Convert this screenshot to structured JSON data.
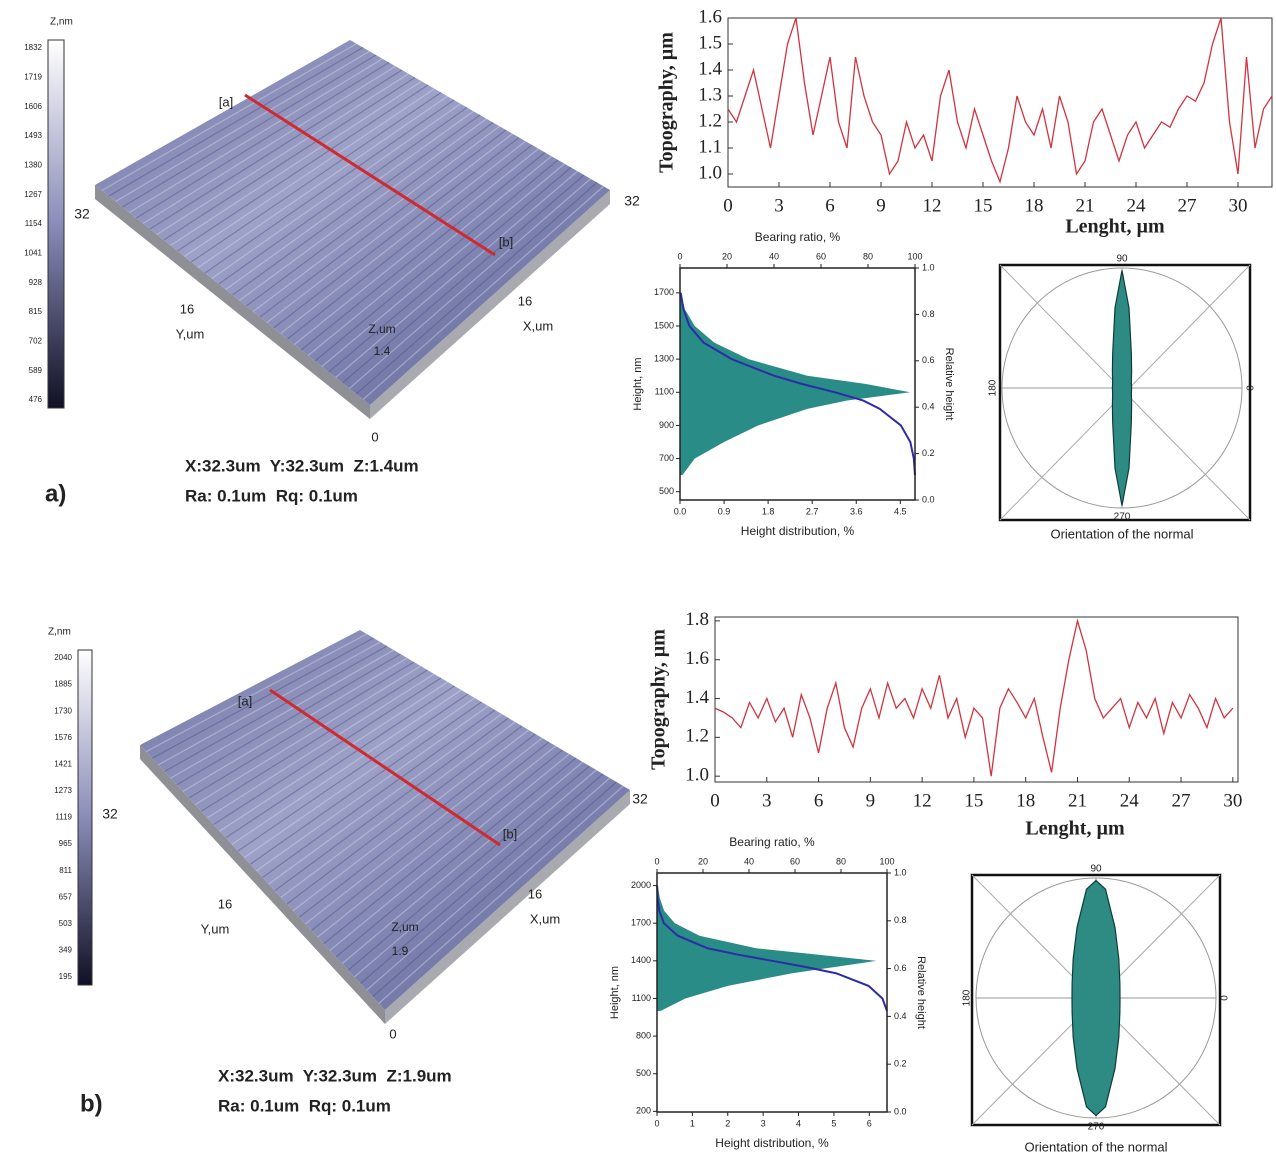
{
  "surfaces": [
    {
      "panel": "a)",
      "zlabel": "Z,nm",
      "colorbar": [
        "1832",
        "1719",
        "1606",
        "1493",
        "1380",
        "1267",
        "1154",
        "1041",
        "928",
        "815",
        "702",
        "589",
        "476"
      ],
      "ymax": "32",
      "xmax": "32",
      "ymid": "16",
      "ylabel": "Y,um",
      "xmid": "16",
      "xlabel": "X,um",
      "zlabel3d": "Z,um",
      "zval": "1.4",
      "origin": "0",
      "marker_start": "[a]",
      "marker_end": "[b]",
      "stats": [
        "X:32.3um  Y:32.3um  Z:1.4um",
        "Ra: 0.1um  Rq: 0.1um"
      ]
    },
    {
      "panel": "b)",
      "zlabel": "Z,nm",
      "colorbar": [
        "2040",
        "1885",
        "1730",
        "1576",
        "1421",
        "1273",
        "1119",
        "965",
        "811",
        "657",
        "503",
        "349",
        "195"
      ],
      "ymax": "32",
      "xmax": "32",
      "ymid": "16",
      "ylabel": "Y,um",
      "xmid": "16",
      "xlabel": "X,um",
      "zlabel3d": "Z,um",
      "zval": "1.9",
      "origin": "0",
      "marker_start": "[a]",
      "marker_end": "[b]",
      "stats": [
        "X:32.3um  Y:32.3um  Z:1.9um",
        "Ra: 0.1um  Rq: 0.1um"
      ]
    }
  ],
  "chart_data": [
    {
      "type": "line",
      "ylabel": "Topography, µm",
      "xlabel": "Lenght, µm",
      "color": "#d0343f",
      "xlim": [
        0,
        32
      ],
      "xticks": [
        0,
        3,
        6,
        9,
        12,
        15,
        18,
        21,
        24,
        27,
        30
      ],
      "ylim": [
        0.95,
        1.6
      ],
      "yticks": [
        {
          "value": 1,
          "label": "1.0"
        },
        1.1,
        1.2,
        1.3,
        1.4,
        1.5,
        1.6
      ],
      "x": [
        0,
        0.5,
        1,
        1.5,
        2,
        2.5,
        3,
        3.5,
        4,
        4.5,
        5,
        5.5,
        6,
        6.5,
        7,
        7.5,
        8,
        8.5,
        9,
        9.5,
        10,
        10.5,
        11,
        11.5,
        12,
        12.5,
        13,
        13.5,
        14,
        14.5,
        15,
        15.5,
        16,
        16.5,
        17,
        17.5,
        18,
        18.5,
        19,
        19.5,
        20,
        20.5,
        21,
        21.5,
        22,
        22.5,
        23,
        23.5,
        24,
        24.5,
        25,
        25.5,
        26,
        26.5,
        27,
        27.5,
        28,
        28.5,
        29,
        29.5,
        30,
        30.5,
        31,
        31.5,
        32
      ],
      "values": [
        1.25,
        1.2,
        1.3,
        1.4,
        1.25,
        1.1,
        1.3,
        1.5,
        1.6,
        1.35,
        1.15,
        1.3,
        1.45,
        1.2,
        1.1,
        1.45,
        1.3,
        1.2,
        1.15,
        1.0,
        1.05,
        1.2,
        1.1,
        1.15,
        1.05,
        1.3,
        1.4,
        1.2,
        1.1,
        1.25,
        1.15,
        1.05,
        0.97,
        1.1,
        1.3,
        1.2,
        1.15,
        1.25,
        1.1,
        1.3,
        1.2,
        1.0,
        1.05,
        1.2,
        1.25,
        1.15,
        1.05,
        1.15,
        1.2,
        1.1,
        1.15,
        1.2,
        1.18,
        1.25,
        1.3,
        1.28,
        1.35,
        1.5,
        1.6,
        1.2,
        1.0,
        1.45,
        1.1,
        1.25,
        1.3
      ]
    },
    {
      "type": "distribution",
      "xlabel": "Height distribution, %",
      "x2label": "Bearing ratio, %",
      "ylabel": "Height, nm",
      "y2label": "Relative height",
      "xlim": [
        0,
        4.8
      ],
      "xticks": [
        {
          "value": 0,
          "label": "0.0"
        },
        0.9,
        1.8,
        2.7,
        3.6,
        4.5
      ],
      "x2lim": [
        0,
        100
      ],
      "x2ticks": [
        0,
        20,
        40,
        60,
        80,
        100
      ],
      "ylim": [
        450,
        1850
      ],
      "yticks": [
        500,
        700,
        900,
        1100,
        1300,
        1500,
        1700
      ],
      "y2lim": [
        0,
        1
      ],
      "y2ticks": [
        {
          "value": 0,
          "label": "0.0"
        },
        0.2,
        0.4,
        0.6,
        0.8,
        {
          "value": 1,
          "label": "1.0"
        }
      ],
      "heights": [
        600,
        700,
        800,
        900,
        1000,
        1050,
        1100,
        1150,
        1200,
        1300,
        1400,
        1500,
        1600,
        1700
      ],
      "distribution": [
        0.05,
        0.3,
        0.9,
        1.6,
        2.6,
        3.4,
        4.7,
        3.8,
        2.6,
        1.4,
        0.7,
        0.3,
        0.1,
        0.02
      ],
      "bearing": [
        100,
        99.5,
        98,
        94,
        85,
        78,
        66,
        52,
        40,
        22,
        10,
        4,
        1.5,
        0.3
      ],
      "distribution_color": "#2a8c86",
      "bearing_color": "#2c2ca8"
    },
    {
      "type": "polar",
      "xlabel": "Orientation of the normal",
      "thetaticks": [
        0,
        90,
        180,
        270
      ],
      "rlim": [
        0,
        1
      ],
      "color": "#2e8b84",
      "angles": [
        0,
        30,
        60,
        75,
        85,
        90,
        95,
        105,
        120,
        150,
        180,
        210,
        240,
        255,
        265,
        270,
        275,
        285,
        300,
        330
      ],
      "radii": [
        0.08,
        0.09,
        0.16,
        0.3,
        0.67,
        0.98,
        0.67,
        0.3,
        0.16,
        0.09,
        0.08,
        0.09,
        0.16,
        0.3,
        0.67,
        0.98,
        0.67,
        0.3,
        0.16,
        0.09
      ]
    },
    {
      "type": "line",
      "ylabel": "Topography, µm",
      "xlabel": "Lenght, µm",
      "color": "#d0343f",
      "xlim": [
        0,
        30.3
      ],
      "xticks": [
        0,
        3,
        6,
        9,
        12,
        15,
        18,
        21,
        24,
        27,
        30
      ],
      "ylim": [
        0.97,
        1.82
      ],
      "yticks": [
        {
          "value": 1,
          "label": "1.0"
        },
        1.2,
        1.4,
        1.6,
        1.8
      ],
      "x": [
        0,
        0.5,
        1,
        1.5,
        2,
        2.5,
        3,
        3.5,
        4,
        4.5,
        5,
        5.5,
        6,
        6.5,
        7,
        7.5,
        8,
        8.5,
        9,
        9.5,
        10,
        10.5,
        11,
        11.5,
        12,
        12.5,
        13,
        13.5,
        14,
        14.5,
        15,
        15.5,
        16,
        16.5,
        17,
        17.5,
        18,
        18.5,
        19,
        19.5,
        20,
        20.5,
        21,
        21.5,
        22,
        22.5,
        23,
        23.5,
        24,
        24.5,
        25,
        25.5,
        26,
        26.5,
        27,
        27.5,
        28,
        28.5,
        29,
        29.5,
        30
      ],
      "values": [
        1.35,
        1.33,
        1.3,
        1.25,
        1.38,
        1.3,
        1.4,
        1.28,
        1.35,
        1.2,
        1.42,
        1.3,
        1.12,
        1.35,
        1.48,
        1.25,
        1.15,
        1.35,
        1.45,
        1.3,
        1.48,
        1.35,
        1.4,
        1.3,
        1.45,
        1.35,
        1.52,
        1.3,
        1.4,
        1.2,
        1.35,
        1.3,
        1.0,
        1.35,
        1.45,
        1.38,
        1.3,
        1.4,
        1.2,
        1.02,
        1.35,
        1.6,
        1.8,
        1.65,
        1.4,
        1.3,
        1.35,
        1.4,
        1.25,
        1.38,
        1.3,
        1.4,
        1.22,
        1.38,
        1.3,
        1.42,
        1.35,
        1.25,
        1.4,
        1.3,
        1.35
      ]
    },
    {
      "type": "distribution",
      "xlabel": "Height distribution, %",
      "x2label": "Bearing ratio, %",
      "ylabel": "Height, nm",
      "y2label": "Relative height",
      "xlim": [
        0,
        6.5
      ],
      "xticks": [
        0,
        1,
        2,
        3,
        4,
        5,
        6
      ],
      "x2lim": [
        0,
        100
      ],
      "x2ticks": [
        0,
        20,
        40,
        60,
        80,
        100
      ],
      "ylim": [
        195,
        2100
      ],
      "yticks": [
        200,
        500,
        800,
        1100,
        1400,
        1700,
        2000
      ],
      "y2lim": [
        0,
        1
      ],
      "y2ticks": [
        {
          "value": 0,
          "label": "0.0"
        },
        0.2,
        0.4,
        0.6,
        0.8,
        {
          "value": 1,
          "label": "1.0"
        }
      ],
      "heights": [
        1000,
        1100,
        1200,
        1300,
        1350,
        1400,
        1450,
        1500,
        1600,
        1700,
        1800,
        1900,
        2000
      ],
      "distribution": [
        0.1,
        0.8,
        2.0,
        3.8,
        5.0,
        6.2,
        4.5,
        2.8,
        1.2,
        0.5,
        0.2,
        0.08,
        0.02
      ],
      "bearing": [
        100,
        98,
        92,
        78,
        65,
        50,
        35,
        22,
        9,
        3,
        1,
        0.3,
        0.05
      ],
      "distribution_color": "#2a8c86",
      "bearing_color": "#2c2ca8"
    },
    {
      "type": "polar",
      "xlabel": "Orientation of the normal",
      "thetaticks": [
        0,
        90,
        180,
        270
      ],
      "rlim": [
        0,
        1
      ],
      "color": "#2e8b84",
      "angles": [
        0,
        30,
        60,
        75,
        85,
        90,
        95,
        105,
        120,
        150,
        180,
        210,
        240,
        255,
        265,
        270,
        275,
        285,
        300,
        330
      ],
      "radii": [
        0.2,
        0.23,
        0.38,
        0.61,
        0.91,
        0.98,
        0.91,
        0.61,
        0.38,
        0.23,
        0.2,
        0.23,
        0.38,
        0.61,
        0.91,
        0.98,
        0.91,
        0.61,
        0.38,
        0.23
      ]
    }
  ]
}
